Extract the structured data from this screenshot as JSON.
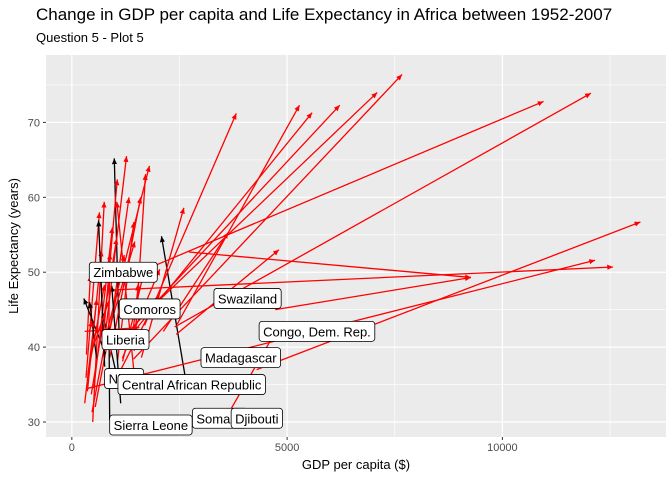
{
  "chart_data": {
    "type": "arrow-segment",
    "title": "Change in GDP per capita and Life Expectancy in Africa between 1952-2007",
    "subtitle": "Question 5 - Plot 5",
    "xlabel": "GDP per capita ($)",
    "ylabel": "Life Expectancy (years)",
    "xlim": [
      -600,
      13800
    ],
    "ylim": [
      28,
      79
    ],
    "x_ticks": [
      0,
      5000,
      10000
    ],
    "y_ticks": [
      30,
      40,
      50,
      60,
      70
    ],
    "grid": true,
    "colors": {
      "increase": "#ff0000",
      "decrease": "#000000",
      "panel": "#ebebeb",
      "grid": "#ffffff"
    },
    "segments": [
      {
        "x0": 2449,
        "y0": 43.1,
        "x1": 5288,
        "y1": 72.3,
        "dir": "up"
      },
      {
        "x0": 3521,
        "y0": 30.0,
        "x1": 4797,
        "y1": 42.7,
        "dir": "up"
      },
      {
        "x0": 1063,
        "y0": 38.2,
        "x1": 1441,
        "y1": 56.7,
        "dir": "up"
      },
      {
        "x0": 851,
        "y0": 47.6,
        "x1": 12570,
        "y1": 50.7,
        "dir": "up"
      },
      {
        "x0": 543,
        "y0": 32.0,
        "x1": 1217,
        "y1": 52.3,
        "dir": "up"
      },
      {
        "x0": 339,
        "y0": 39.0,
        "x1": 430,
        "y1": 49.6,
        "dir": "up"
      },
      {
        "x0": 1173,
        "y0": 38.5,
        "x1": 2042,
        "y1": 50.4,
        "dir": "up"
      },
      {
        "x0": 1071,
        "y0": 35.5,
        "x1": 706,
        "y1": 44.7,
        "dir": "down"
      },
      {
        "x0": 1179,
        "y0": 38.1,
        "x1": 1704,
        "y1": 50.7,
        "dir": "up"
      },
      {
        "x0": 1103,
        "y0": 40.7,
        "x1": 986,
        "y1": 65.2,
        "dir": "down"
      },
      {
        "x0": 781,
        "y0": 39.1,
        "x1": 278,
        "y1": 46.5,
        "dir": "down"
      },
      {
        "x0": 2126,
        "y0": 42.1,
        "x1": 3633,
        "y1": 55.3,
        "dir": "up"
      },
      {
        "x0": 1389,
        "y0": 40.5,
        "x1": 1545,
        "y1": 48.3,
        "dir": "up"
      },
      {
        "x0": 2670,
        "y0": 34.8,
        "x1": 2082,
        "y1": 54.8,
        "dir": "down"
      },
      {
        "x0": 1419,
        "y0": 41.9,
        "x1": 5581,
        "y1": 71.3,
        "dir": "up"
      },
      {
        "x0": 376,
        "y0": 34.5,
        "x1": 12154,
        "y1": 51.6,
        "dir": "up"
      },
      {
        "x0": 329,
        "y0": 35.9,
        "x1": 641,
        "y1": 58.0,
        "dir": "up"
      },
      {
        "x0": 362,
        "y0": 34.1,
        "x1": 691,
        "y1": 52.9,
        "dir": "up"
      },
      {
        "x0": 4293,
        "y0": 37.0,
        "x1": 13206,
        "y1": 56.7,
        "dir": "up"
      },
      {
        "x0": 485,
        "y0": 30.0,
        "x1": 753,
        "y1": 59.4,
        "dir": "up"
      },
      {
        "x0": 911,
        "y0": 43.1,
        "x1": 1328,
        "y1": 60.0,
        "dir": "up"
      },
      {
        "x0": 510,
        "y0": 34.5,
        "x1": 943,
        "y1": 56.0,
        "dir": "up"
      },
      {
        "x0": 299,
        "y0": 32.5,
        "x1": 579,
        "y1": 46.4,
        "dir": "up"
      },
      {
        "x0": 1468,
        "y0": 40.5,
        "x1": 1544,
        "y1": 48.5,
        "dir": "up"
      },
      {
        "x0": 854,
        "y0": 42.1,
        "x1": 1463,
        "y1": 54.1,
        "dir": "up"
      },
      {
        "x0": 298,
        "y0": 42.1,
        "x1": 1569,
        "y1": 42.6,
        "dir": "up"
      },
      {
        "x0": 575,
        "y0": 38.5,
        "x1": 415,
        "y1": 46.0,
        "dir": "down"
      },
      {
        "x0": 2388,
        "y0": 42.7,
        "x1": 12057,
        "y1": 73.9,
        "dir": "up"
      },
      {
        "x0": 1443,
        "y0": 36.7,
        "x1": 1045,
        "y1": 59.4,
        "dir": "up"
      },
      {
        "x0": 369,
        "y0": 36.3,
        "x1": 759,
        "y1": 48.3,
        "dir": "up"
      },
      {
        "x0": 452,
        "y0": 33.7,
        "x1": 1042,
        "y1": 54.5,
        "dir": "up"
      },
      {
        "x0": 743,
        "y0": 40.4,
        "x1": 1803,
        "y1": 64.2,
        "dir": "up"
      },
      {
        "x0": 1968,
        "y0": 50.99,
        "x1": 10957,
        "y1": 72.8,
        "dir": "up"
      },
      {
        "x0": 1688,
        "y0": 42.9,
        "x1": 3820,
        "y1": 71.2,
        "dir": "up"
      },
      {
        "x0": 468,
        "y0": 31.3,
        "x1": 824,
        "y1": 42.1,
        "dir": "up"
      },
      {
        "x0": 2424,
        "y0": 41.7,
        "x1": 4811,
        "y1": 53.0,
        "dir": "up"
      },
      {
        "x0": 762,
        "y0": 37.4,
        "x1": 620,
        "y1": 56.9,
        "dir": "down"
      },
      {
        "x0": 1077,
        "y0": 36.3,
        "x1": 2014,
        "y1": 46.9,
        "dir": "up"
      },
      {
        "x0": 2719,
        "y0": 52.7,
        "x1": 9270,
        "y1": 49.3,
        "dir": "up"
      },
      {
        "x0": 493,
        "y0": 40.0,
        "x1": 863,
        "y1": 46.2,
        "dir": "up"
      },
      {
        "x0": 880,
        "y0": 38.6,
        "x1": 1598,
        "y1": 60.0,
        "dir": "up"
      },
      {
        "x0": 1450,
        "y0": 39.5,
        "x1": 1712,
        "y1": 63.1,
        "dir": "up"
      },
      {
        "x0": 879,
        "y0": 30.3,
        "x1": 863,
        "y1": 42.6,
        "dir": "down"
      },
      {
        "x0": 1135,
        "y0": 32.5,
        "x1": 926,
        "y1": 48.2,
        "dir": "down"
      },
      {
        "x0": 4725,
        "y0": 45.0,
        "x1": 9270,
        "y1": 49.3,
        "dir": "up"
      },
      {
        "x0": 1616,
        "y0": 38.6,
        "x1": 2602,
        "y1": 58.6,
        "dir": "up"
      },
      {
        "x0": 716,
        "y0": 40.4,
        "x1": 1056,
        "y1": 62.4,
        "dir": "up"
      },
      {
        "x0": 859,
        "y0": 42.6,
        "x1": 882,
        "y1": 52.5,
        "dir": "up"
      },
      {
        "x0": 1725,
        "y0": 44.6,
        "x1": 7093,
        "y1": 74.0,
        "dir": "up"
      },
      {
        "x0": 1434,
        "y0": 38.4,
        "x1": 7670,
        "y1": 76.4,
        "dir": "up"
      },
      {
        "x0": 734,
        "y0": 39.6,
        "x1": 1271,
        "y1": 65.5,
        "dir": "up"
      },
      {
        "x0": 1147,
        "y0": 41.0,
        "x1": 6223,
        "y1": 72.3,
        "dir": "up"
      },
      {
        "x0": 406,
        "y0": 42.0,
        "x1": 470,
        "y1": 43.5,
        "dir": "up"
      }
    ],
    "labels": [
      {
        "text": "Zimbabwe",
        "x": 406,
        "y": 50.0
      },
      {
        "text": "Comoros",
        "x": 1103,
        "y": 45.1
      },
      {
        "text": "Swaziland",
        "x": 3300,
        "y": 46.5
      },
      {
        "text": "Congo, Dem. Rep.",
        "x": 4350,
        "y": 42.1
      },
      {
        "text": "Liberia",
        "x": 700,
        "y": 41.0
      },
      {
        "text": "Madagascar",
        "x": 3000,
        "y": 38.6
      },
      {
        "text": "Niger",
        "x": 761,
        "y": 35.8
      },
      {
        "text": "Central African Republic",
        "x": 1071,
        "y": 35.0
      },
      {
        "text": "Somalia",
        "x": 2800,
        "y": 30.5
      },
      {
        "text": "Djibouti",
        "x": 3700,
        "y": 30.5
      },
      {
        "text": "Sierra Leone",
        "x": 879,
        "y": 29.6
      }
    ]
  }
}
